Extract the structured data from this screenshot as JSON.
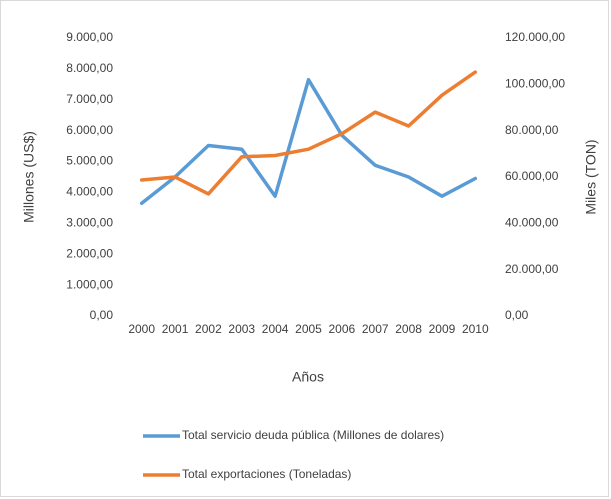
{
  "chart_data": {
    "type": "line",
    "categories": [
      "2000",
      "2001",
      "2002",
      "2003",
      "2004",
      "2005",
      "2006",
      "2007",
      "2008",
      "2009",
      "2010"
    ],
    "series": [
      {
        "name": "Total servicio deuda pública (Millones de dolares)",
        "color": "#5b9bd5",
        "values": [
          3650,
          4500,
          5520,
          5400,
          3880,
          7650,
          5850,
          4880,
          4500,
          3880,
          4450
        ]
      },
      {
        "name": "Total exportaciones (Toneladas)",
        "color": "#ed7d31",
        "axis": "y2",
        "values": [
          58700,
          60000,
          52700,
          68700,
          69300,
          72000,
          78700,
          88000,
          82000,
          95300,
          105300
        ]
      }
    ],
    "ylim": [
      0,
      9000
    ],
    "yticks": [
      {
        "value": 0,
        "label": "0,00"
      },
      {
        "value": 1000,
        "label": "1.000,00"
      },
      {
        "value": 2000,
        "label": "2.000,00"
      },
      {
        "value": 3000,
        "label": "3.000,00"
      },
      {
        "value": 4000,
        "label": "4.000,00"
      },
      {
        "value": 5000,
        "label": "5.000,00"
      },
      {
        "value": 6000,
        "label": "6.000,00"
      },
      {
        "value": 7000,
        "label": "7.000,00"
      },
      {
        "value": 8000,
        "label": "8.000,00"
      },
      {
        "value": 9000,
        "label": "9.000,00"
      }
    ],
    "y2lim": [
      0,
      120000
    ],
    "y2ticks": [
      {
        "value": 0,
        "label": "0,00"
      },
      {
        "value": 20000,
        "label": "20.000,00"
      },
      {
        "value": 40000,
        "label": "40.000,00"
      },
      {
        "value": 60000,
        "label": "60.000,00"
      },
      {
        "value": 80000,
        "label": "80.000,00"
      },
      {
        "value": 100000,
        "label": "100.000,00"
      },
      {
        "value": 120000,
        "label": "120.000,00"
      }
    ],
    "ylabel": "Millones (US$)",
    "y2label": "Miles (TON)",
    "xlabel": "Años",
    "grid": false
  }
}
